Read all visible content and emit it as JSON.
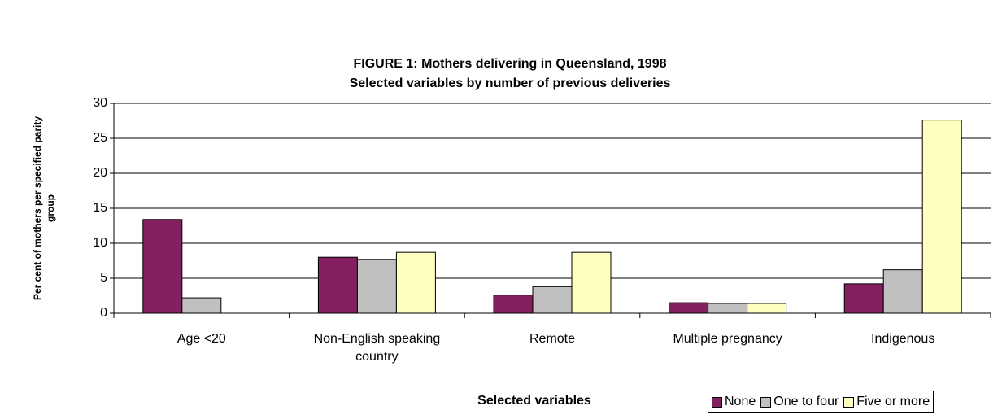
{
  "chart_data": {
    "type": "bar",
    "title": "FIGURE 1: Mothers delivering in Queensland, 1998",
    "subtitle": "Selected variables by number of previous deliveries",
    "x_label": "Selected variables",
    "y_label": "Per cent of mothers per specified parity group",
    "categories": [
      "Age <20",
      "Non-English speaking country",
      "Remote",
      "Multiple pregnancy",
      "Indigenous"
    ],
    "series": [
      {
        "name": "None",
        "color": "#852060",
        "values": [
          13.4,
          8.0,
          2.6,
          1.5,
          4.2
        ]
      },
      {
        "name": "One to four",
        "color": "#c0c0c0",
        "values": [
          2.2,
          7.7,
          3.8,
          1.4,
          6.2
        ]
      },
      {
        "name": "Five or more",
        "color": "#ffffc0",
        "values": [
          0,
          8.7,
          8.7,
          1.4,
          27.6
        ]
      }
    ],
    "ylim": [
      0,
      30
    ],
    "yticks": [
      0,
      5,
      10,
      15,
      20,
      25,
      30
    ],
    "grid": true,
    "legend": "bottom-right"
  }
}
